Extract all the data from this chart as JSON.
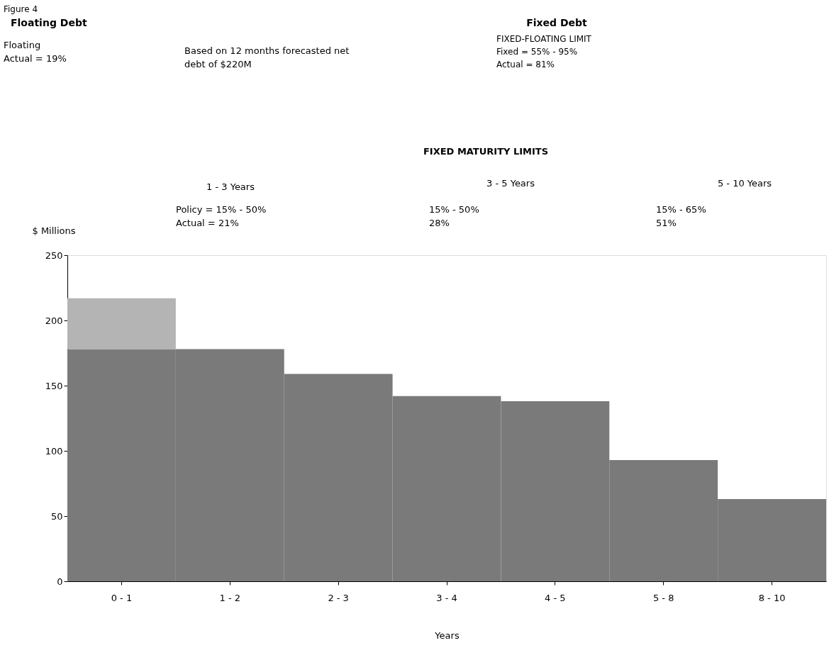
{
  "chart_data": {
    "type": "bar",
    "stacked": true,
    "categories": [
      "0 - 1",
      "1 - 2",
      "2 - 3",
      "3 - 4",
      "4 - 5",
      "5 - 8",
      "8 - 10"
    ],
    "series": [
      {
        "color": "#7a7a7a",
        "values": [
          178,
          178,
          159,
          142,
          138,
          93,
          63
        ]
      },
      {
        "color": "#b4b4b4",
        "values": [
          39,
          null,
          null,
          null,
          null,
          null,
          null
        ]
      }
    ],
    "xlabel": "Years",
    "ylabel": "$ Millions",
    "ylim": [
      0,
      250
    ],
    "yticks": [
      0,
      50,
      100,
      150,
      200,
      250
    ],
    "grid": false,
    "legend": false,
    "annotations": [
      "Figure 4",
      "Floating Debt",
      "Fixed Debt",
      "Floating\nActual =  19%",
      "Based on 12 months forecasted net\ndebt of $220M",
      "FIXED-FLOATING LIMIT\nFixed      = 55% - 95%\nActual     = 81%",
      "FIXED MATURITY LIMITS",
      "1 - 3 Years",
      "Policy  =  15% - 50%\nActual  =  21%",
      "3 - 5 Years",
      "15% - 50%\n28%",
      "5 - 10 Years",
      "15% - 65%\n51%"
    ]
  }
}
